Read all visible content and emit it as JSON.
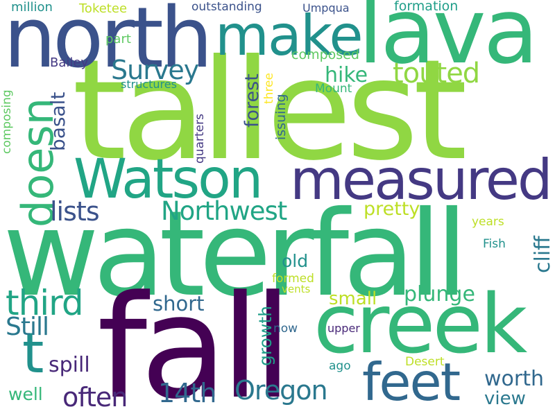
{
  "words": [
    {
      "id": "tallest",
      "text": "tallest",
      "color": "#90d743",
      "rotated": false
    },
    {
      "id": "waterfall",
      "text": "waterfall",
      "color": "#35b779",
      "rotated": false
    },
    {
      "id": "fall",
      "text": "fall",
      "color": "#440154",
      "rotated": false
    },
    {
      "id": "north",
      "text": "north",
      "color": "#3b528b",
      "rotated": false
    },
    {
      "id": "lava",
      "text": "lava",
      "color": "#35b779",
      "rotated": false
    },
    {
      "id": "creek",
      "text": "creek",
      "color": "#35b779",
      "rotated": false
    },
    {
      "id": "make",
      "text": "make",
      "color": "#21918c",
      "rotated": false
    },
    {
      "id": "watson",
      "text": "Watson",
      "color": "#21a585",
      "rotated": false
    },
    {
      "id": "measured",
      "text": "measured",
      "color": "#443983",
      "rotated": false
    },
    {
      "id": "feet",
      "text": "feet",
      "color": "#31688e",
      "rotated": false
    },
    {
      "id": "doesn",
      "text": "doesn",
      "color": "#35b779",
      "rotated": true
    },
    {
      "id": "t",
      "text": "t",
      "color": "#21918c",
      "rotated": false
    },
    {
      "id": "third",
      "text": "third",
      "color": "#21a585",
      "rotated": false
    },
    {
      "id": "northwest",
      "text": "Northwest",
      "color": "#21a585",
      "rotated": false
    },
    {
      "id": "touted",
      "text": "touted",
      "color": "#90d743",
      "rotated": false
    },
    {
      "id": "survey",
      "text": "Survey",
      "color": "#2a788e",
      "rotated": false
    },
    {
      "id": "lists",
      "text": "lists",
      "color": "#3b528b",
      "rotated": false
    },
    {
      "id": "oregon",
      "text": "Oregon",
      "color": "#2a788e",
      "rotated": false
    },
    {
      "id": "14th",
      "text": "14th",
      "color": "#31688e",
      "rotated": false
    },
    {
      "id": "often",
      "text": "often",
      "color": "#482878",
      "rotated": false
    },
    {
      "id": "still",
      "text": "Still",
      "color": "#2a788e",
      "rotated": false
    },
    {
      "id": "worth",
      "text": "worth",
      "color": "#31688e",
      "rotated": false
    },
    {
      "id": "hike",
      "text": "hike",
      "color": "#35b779",
      "rotated": false
    },
    {
      "id": "plunge",
      "text": "plunge",
      "color": "#35b779",
      "rotated": false
    },
    {
      "id": "short",
      "text": "short",
      "color": "#31688e",
      "rotated": false
    },
    {
      "id": "spill",
      "text": "spill",
      "color": "#482878",
      "rotated": false
    },
    {
      "id": "pretty",
      "text": "pretty",
      "color": "#bddf26",
      "rotated": false
    },
    {
      "id": "small",
      "text": "small",
      "color": "#bddf26",
      "rotated": false
    },
    {
      "id": "cliff",
      "text": "cliff",
      "color": "#2a788e",
      "rotated": true
    },
    {
      "id": "view",
      "text": "view",
      "color": "#2a788e",
      "rotated": false
    },
    {
      "id": "basalt",
      "text": "basalt",
      "color": "#3b528b",
      "rotated": true
    },
    {
      "id": "forest",
      "text": "forest",
      "color": "#3b528b",
      "rotated": true
    },
    {
      "id": "growth",
      "text": "growth",
      "color": "#1f9e89",
      "rotated": true
    },
    {
      "id": "old",
      "text": "old",
      "color": "#21918c",
      "rotated": false
    },
    {
      "id": "well",
      "text": "well",
      "color": "#35b779",
      "rotated": false
    },
    {
      "id": "composed",
      "text": "composed",
      "color": "#5ec962",
      "rotated": false
    },
    {
      "id": "formation",
      "text": "formation",
      "color": "#1f9e89",
      "rotated": false
    },
    {
      "id": "outstanding",
      "text": "outstanding",
      "color": "#3b528b",
      "rotated": false
    },
    {
      "id": "million",
      "text": "million",
      "color": "#21918c",
      "rotated": false
    },
    {
      "id": "toketee",
      "text": "Toketee",
      "color": "#bddf26",
      "rotated": false
    },
    {
      "id": "umpqua",
      "text": "Umpqua",
      "color": "#3b528b",
      "rotated": false
    },
    {
      "id": "part",
      "text": "part",
      "color": "#5ec962",
      "rotated": false
    },
    {
      "id": "bailey",
      "text": "Bailey",
      "color": "#443983",
      "rotated": false
    },
    {
      "id": "structures",
      "text": "structures",
      "color": "#21918c",
      "rotated": false
    },
    {
      "id": "mount",
      "text": "Mount",
      "color": "#35b779",
      "rotated": false
    },
    {
      "id": "three",
      "text": "three",
      "color": "#fde725",
      "rotated": true
    },
    {
      "id": "issuing",
      "text": "issuing",
      "color": "#31688e",
      "rotated": true
    },
    {
      "id": "quarters",
      "text": "quarters",
      "color": "#443983",
      "rotated": true
    },
    {
      "id": "composing",
      "text": "composing",
      "color": "#5ec962",
      "rotated": true
    },
    {
      "id": "years",
      "text": "years",
      "color": "#bddf26",
      "rotated": false
    },
    {
      "id": "fish",
      "text": "Fish",
      "color": "#21918c",
      "rotated": false
    },
    {
      "id": "formed",
      "text": "formed",
      "color": "#bddf26",
      "rotated": false
    },
    {
      "id": "vents",
      "text": "vents",
      "color": "#bddf26",
      "rotated": false
    },
    {
      "id": "now",
      "text": "now",
      "color": "#31688e",
      "rotated": false
    },
    {
      "id": "upper",
      "text": "upper",
      "color": "#482878",
      "rotated": false
    },
    {
      "id": "ago",
      "text": "ago",
      "color": "#21918c",
      "rotated": false
    },
    {
      "id": "desert",
      "text": "Desert",
      "color": "#bddf26",
      "rotated": false
    }
  ]
}
